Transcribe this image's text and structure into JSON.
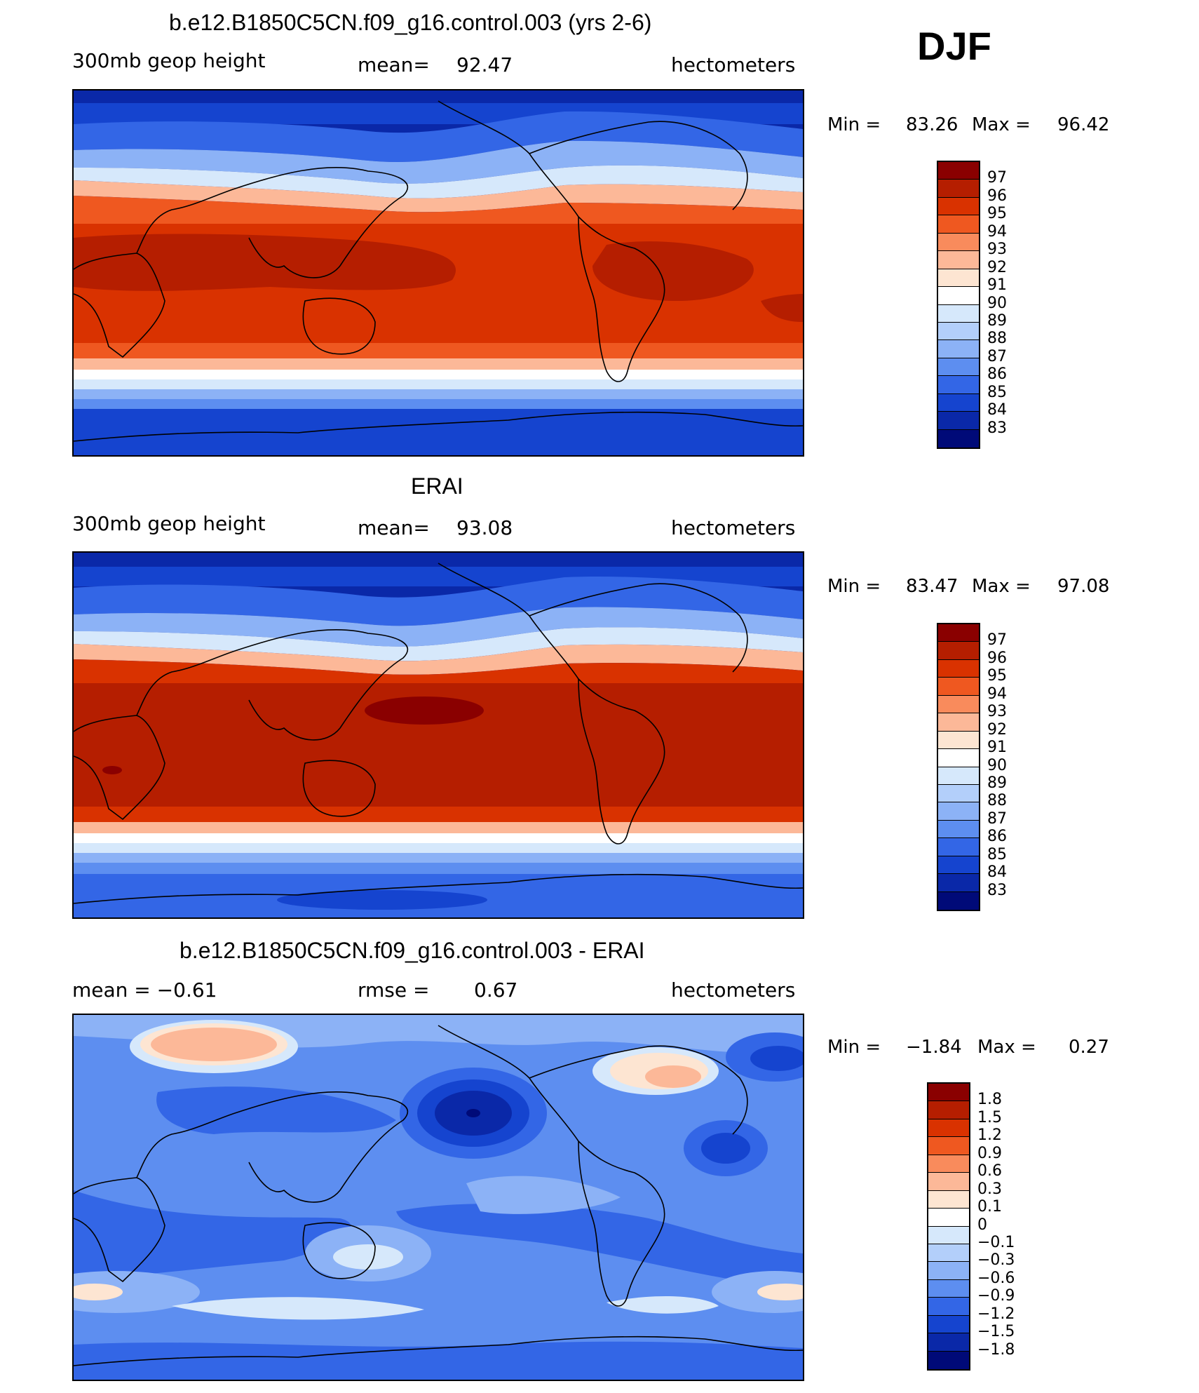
{
  "season": "DJF",
  "chart_data": [
    {
      "type": "heatmap",
      "title": "b.e12.B1850C5CN.f09_g16.control.003 (yrs 2-6)",
      "left_string": "300mb  geop  height",
      "center_label": "mean=",
      "center_value": "92.47",
      "units": "hectometers",
      "min_label": "Min  =",
      "min_value": "83.26",
      "max_label": "Max  =",
      "max_value": "96.42",
      "colorbar_levels": [
        "97",
        "96",
        "95",
        "94",
        "93",
        "92",
        "91",
        "90",
        "89",
        "88",
        "87",
        "86",
        "85",
        "84",
        "83"
      ],
      "colorbar_colors": [
        "#8a0000",
        "#b51e00",
        "#d93200",
        "#ef5820",
        "#f98b5c",
        "#fcb898",
        "#fde5d2",
        "#ffffff",
        "#d6e8fb",
        "#b3cffa",
        "#8cb2f6",
        "#5d8ef0",
        "#3366e6",
        "#1544cf",
        "#0a28a8",
        "#000a78"
      ]
    },
    {
      "type": "heatmap",
      "title": "ERAI",
      "left_string": "300mb  geop  height",
      "center_label": "mean=",
      "center_value": "93.08",
      "units": "hectometers",
      "min_label": "Min  =",
      "min_value": "83.47",
      "max_label": "Max  =",
      "max_value": "97.08",
      "colorbar_levels": [
        "97",
        "96",
        "95",
        "94",
        "93",
        "92",
        "91",
        "90",
        "89",
        "88",
        "87",
        "86",
        "85",
        "84",
        "83"
      ],
      "colorbar_colors": [
        "#8a0000",
        "#b51e00",
        "#d93200",
        "#ef5820",
        "#f98b5c",
        "#fcb898",
        "#fde5d2",
        "#ffffff",
        "#d6e8fb",
        "#b3cffa",
        "#8cb2f6",
        "#5d8ef0",
        "#3366e6",
        "#1544cf",
        "#0a28a8",
        "#000a78"
      ]
    },
    {
      "type": "heatmap",
      "title": "b.e12.B1850C5CN.f09_g16.control.003 - ERAI",
      "left_string": "mean  =     −0.61",
      "center_label": "rmse  =",
      "center_value": "0.67",
      "units": "hectometers",
      "min_label": "Min  =",
      "min_value": "−1.84",
      "max_label": "Max  =",
      "max_value": "0.27",
      "colorbar_levels": [
        "1.8",
        "1.5",
        "1.2",
        "0.9",
        "0.6",
        "0.3",
        "0.1",
        "0",
        "−0.1",
        "−0.3",
        "−0.6",
        "−0.9",
        "−1.2",
        "−1.5",
        "−1.8"
      ],
      "colorbar_colors": [
        "#8a0000",
        "#b51e00",
        "#d93200",
        "#ef5820",
        "#f98b5c",
        "#fcb898",
        "#fde5d2",
        "#ffffff",
        "#d6e8fb",
        "#b3cffa",
        "#8cb2f6",
        "#5d8ef0",
        "#3366e6",
        "#1544cf",
        "#0a28a8",
        "#000a78"
      ]
    }
  ]
}
